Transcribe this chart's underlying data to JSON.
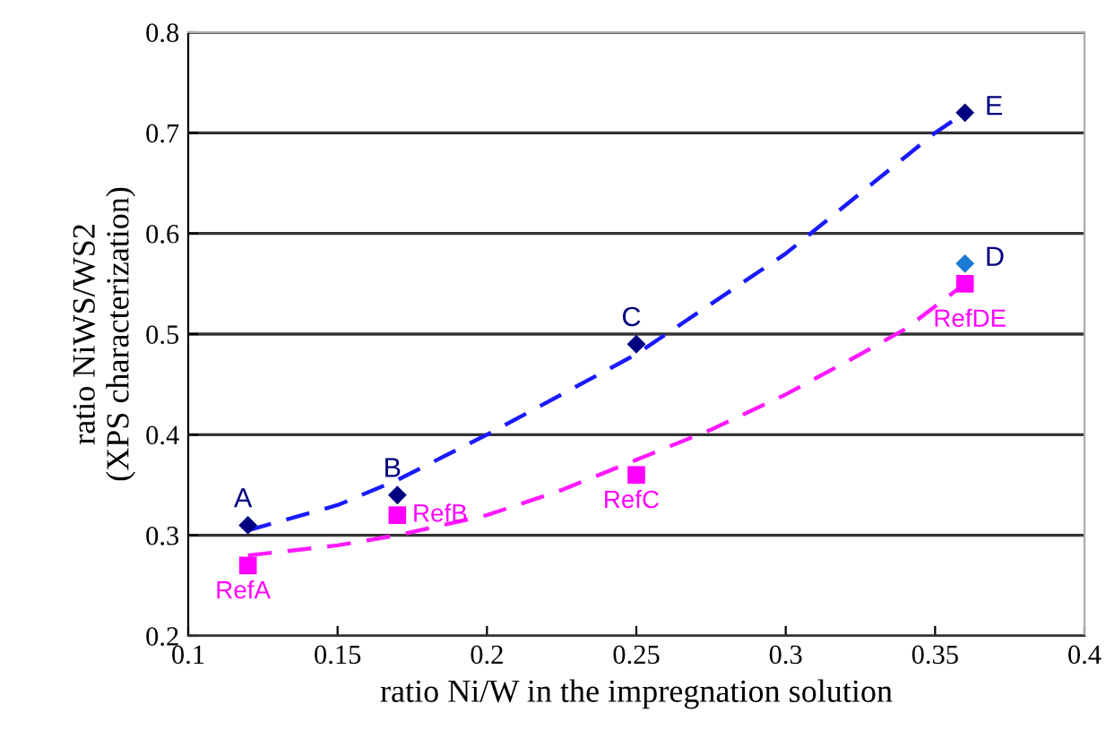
{
  "chart_data": {
    "type": "scatter",
    "xlabel": "ratio Ni/W in the impregnation solution",
    "ylabel": "ratio NiWS/WS2\n(XPS characterization)",
    "xlim": [
      0.1,
      0.4
    ],
    "xticks": [
      0.1,
      0.15,
      0.2,
      0.25,
      0.3,
      0.35,
      0.4
    ],
    "ylim": [
      0.2,
      0.8
    ],
    "yticks": [
      0.2,
      0.3,
      0.4,
      0.5,
      0.6,
      0.7,
      0.8
    ],
    "grid": "y",
    "legend": false,
    "series": [
      {
        "type": "line",
        "color": "#1a1aff",
        "line_style": "dashed",
        "marker": "none",
        "x": [
          0.12,
          0.15,
          0.17,
          0.2,
          0.225,
          0.25,
          0.275,
          0.3,
          0.325,
          0.35,
          0.36
        ],
        "values": [
          0.305,
          0.33,
          0.355,
          0.4,
          0.44,
          0.48,
          0.53,
          0.58,
          0.64,
          0.7,
          0.72
        ]
      },
      {
        "type": "line",
        "color": "#ff1aff",
        "line_style": "dashed",
        "marker": "none",
        "x": [
          0.12,
          0.15,
          0.17,
          0.2,
          0.225,
          0.25,
          0.275,
          0.3,
          0.325,
          0.34,
          0.36
        ],
        "values": [
          0.28,
          0.29,
          0.3,
          0.32,
          0.345,
          0.375,
          0.405,
          0.44,
          0.48,
          0.505,
          0.55
        ]
      },
      {
        "color": "#000080",
        "colors": [
          "#000080",
          "#000080",
          "#000080",
          "#1a7ad4",
          "#000080"
        ],
        "marker": "diamond",
        "x": [
          0.12,
          0.17,
          0.25,
          0.36,
          0.36
        ],
        "values": [
          0.31,
          0.34,
          0.49,
          0.57,
          0.72
        ]
      },
      {
        "color": "#ff00ff",
        "marker": "square",
        "x": [
          0.12,
          0.17,
          0.25,
          0.36
        ],
        "values": [
          0.27,
          0.32,
          0.36,
          0.55
        ]
      }
    ],
    "annotations": [
      {
        "text": "A",
        "x": 0.12,
        "y": 0.31
      },
      {
        "text": "B",
        "x": 0.17,
        "y": 0.34
      },
      {
        "text": "C",
        "x": 0.25,
        "y": 0.49
      },
      {
        "text": "D",
        "x": 0.36,
        "y": 0.57
      },
      {
        "text": "E",
        "x": 0.36,
        "y": 0.72
      },
      {
        "text": "RefA",
        "x": 0.12,
        "y": 0.27
      },
      {
        "text": "RefB",
        "x": 0.17,
        "y": 0.32
      },
      {
        "text": "RefC",
        "x": 0.25,
        "y": 0.36
      },
      {
        "text": "RefDE",
        "x": 0.36,
        "y": 0.55
      }
    ]
  }
}
